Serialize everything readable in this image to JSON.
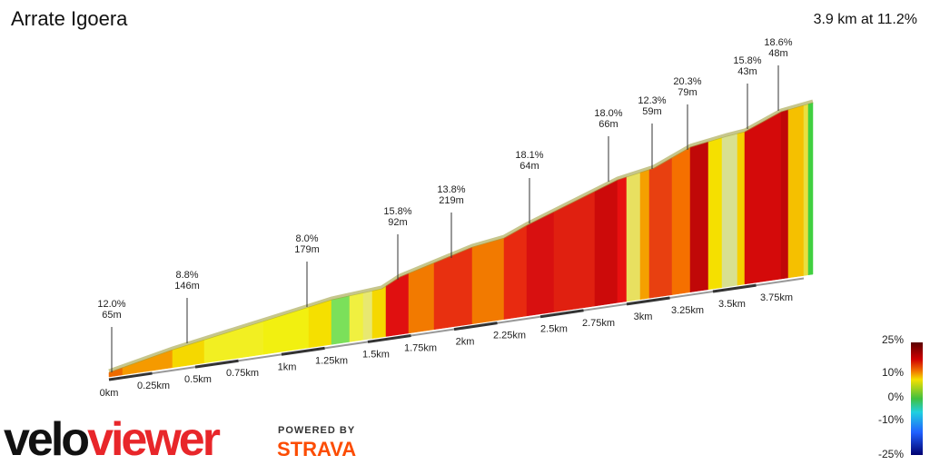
{
  "header": {
    "title": "Arrate Igoera",
    "summary": "3.9 km at 11.2%"
  },
  "annotations": [
    {
      "gradient": "12.0%",
      "length": "65m"
    },
    {
      "gradient": "8.8%",
      "length": "146m"
    },
    {
      "gradient": "8.0%",
      "length": "179m"
    },
    {
      "gradient": "15.8%",
      "length": "92m"
    },
    {
      "gradient": "13.8%",
      "length": "219m"
    },
    {
      "gradient": "18.1%",
      "length": "64m"
    },
    {
      "gradient": "18.0%",
      "length": "66m"
    },
    {
      "gradient": "12.3%",
      "length": "59m"
    },
    {
      "gradient": "20.3%",
      "length": "79m"
    },
    {
      "gradient": "15.8%",
      "length": "43m"
    },
    {
      "gradient": "18.6%",
      "length": "48m"
    }
  ],
  "distance_labels": [
    "0km",
    "0.25km",
    "0.5km",
    "0.75km",
    "1km",
    "1.25km",
    "1.5km",
    "1.75km",
    "2km",
    "2.25km",
    "2.5km",
    "2.75km",
    "3km",
    "3.25km",
    "3.5km",
    "3.75km"
  ],
  "legend": {
    "labels": [
      "25%",
      "10%",
      "0%",
      "-10%",
      "-25%"
    ]
  },
  "branding": {
    "logo_dark": "velo",
    "logo_red": "viewer",
    "powered": "POWERED BY",
    "strava": "STRAVA"
  }
}
